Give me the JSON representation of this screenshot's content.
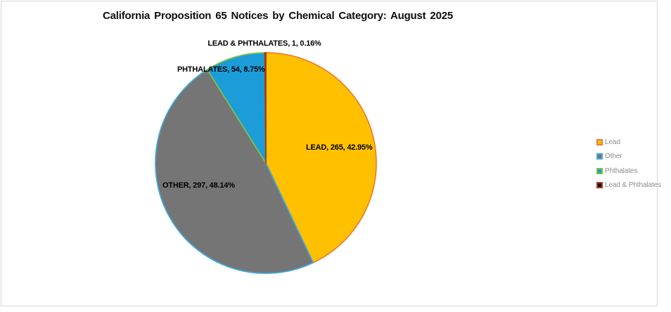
{
  "chart_data": {
    "type": "pie",
    "title": "California Proposition 65 Notices by Chemical Category: August 2025",
    "direction": "clockwise",
    "start_angle_deg": 0,
    "legend_position": "right",
    "slices": [
      {
        "id": "lead",
        "name": "Lead",
        "value": 265,
        "percent": 42.95,
        "label": "LEAD, 265, 42.95%",
        "fill": "#FFC000",
        "stroke": "#ED7D31"
      },
      {
        "id": "other",
        "name": "Other",
        "value": 297,
        "percent": 48.14,
        "label": "OTHER, 297, 48.14%",
        "fill": "#757575",
        "stroke": "#41AADC"
      },
      {
        "id": "phthalates",
        "name": "Phthalates",
        "value": 54,
        "percent": 8.75,
        "label": "PHTHALATES, 54, 8.75%",
        "fill": "#1C9DD9",
        "stroke": "#7EC242"
      },
      {
        "id": "lead-phthalates",
        "name": "Lead & Phthalates",
        "value": 1,
        "percent": 0.16,
        "label": "LEAD & PHTHALATES, 1, 0.16%",
        "fill": "#141414",
        "stroke": "#A03B22"
      }
    ]
  }
}
